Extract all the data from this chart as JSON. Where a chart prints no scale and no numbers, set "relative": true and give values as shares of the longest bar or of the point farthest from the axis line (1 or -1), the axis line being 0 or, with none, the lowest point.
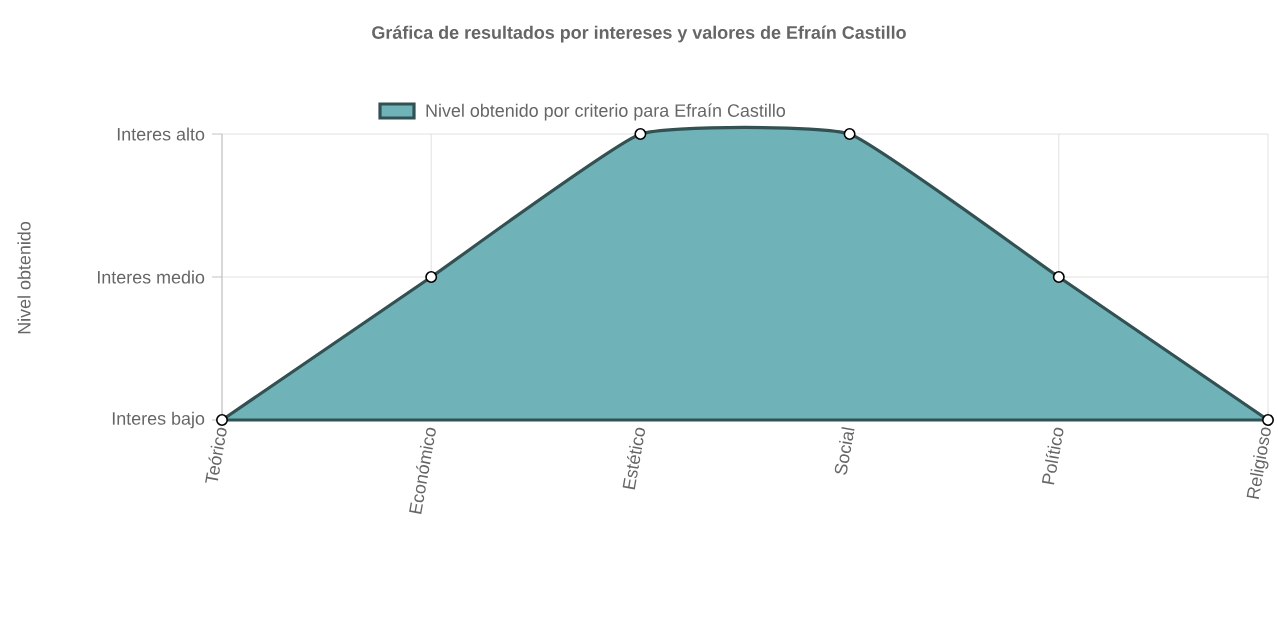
{
  "chart_data": {
    "type": "area",
    "title": "Gráfica de resultados por intereses y valores de Efraín Castillo",
    "annotations": [
      "Nivel obtenido"
    ],
    "categories": [
      "Teórico",
      "Económico",
      "Estético",
      "Social",
      "Político",
      "Religioso"
    ],
    "series": [
      {
        "name": "Nivel obtenido por criterio para Efraín Castillo",
        "color": "#6fb3b8",
        "values": [
          0,
          0.5,
          1,
          1,
          0.5,
          0
        ]
      }
    ],
    "relative": true,
    "ref_lines": [
      {
        "axis": "y",
        "value": 0,
        "label": "Interes bajo"
      },
      {
        "axis": "y",
        "value": 0.5,
        "label": "Interes medio"
      },
      {
        "axis": "y",
        "value": 1,
        "label": "Interes alto"
      }
    ],
    "grid": "x",
    "legend": "top",
    "marker": "circle"
  }
}
